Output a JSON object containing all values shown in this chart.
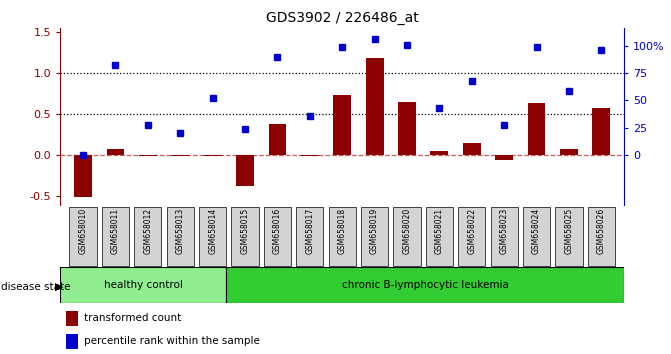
{
  "title": "GDS3902 / 226486_at",
  "samples": [
    "GSM658010",
    "GSM658011",
    "GSM658012",
    "GSM658013",
    "GSM658014",
    "GSM658015",
    "GSM658016",
    "GSM658017",
    "GSM658018",
    "GSM658019",
    "GSM658020",
    "GSM658021",
    "GSM658022",
    "GSM658023",
    "GSM658024",
    "GSM658025",
    "GSM658026"
  ],
  "transformed_count": [
    -0.52,
    0.07,
    -0.02,
    -0.02,
    -0.02,
    -0.38,
    0.38,
    -0.02,
    0.73,
    1.18,
    0.65,
    0.04,
    0.15,
    -0.07,
    0.64,
    0.07,
    0.57
  ],
  "percentile_rank": [
    0.0,
    1.1,
    0.36,
    0.27,
    0.7,
    0.32,
    1.2,
    0.47,
    1.32,
    1.42,
    1.35,
    0.57,
    0.9,
    0.37,
    1.32,
    0.78,
    1.28
  ],
  "left_yticks": [
    -0.5,
    0.0,
    0.5,
    1.0,
    1.5
  ],
  "ylim_left": [
    -0.62,
    1.55
  ],
  "group_healthy_count": 5,
  "group_leukemia_count": 12,
  "bar_color": "#8B0000",
  "dot_color": "#0000CD",
  "healthy_color": "#90EE90",
  "leukemia_color": "#32CD32",
  "tick_label_bg": "#D3D3D3",
  "zero_line_color": "#CD5C5C",
  "legend_square_red": "#8B0000",
  "legend_square_blue": "#0000CD"
}
